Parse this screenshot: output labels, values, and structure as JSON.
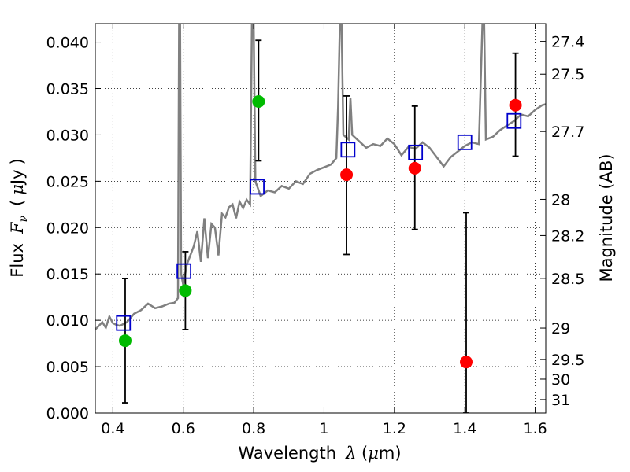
{
  "chart_data": {
    "type": "scatter",
    "xlabel": "Wavelength",
    "xlabel_symbol": "λ",
    "xlabel_unit_open": " (",
    "xlabel_unit_mu": "μ",
    "xlabel_unit_close": "m)",
    "ylabel": "Flux",
    "ylabel_symbol": "F",
    "ylabel_symbol_sub": "ν",
    "ylabel_unit_open": "(",
    "ylabel_unit_mu": "μ",
    "ylabel_unit_close": "Jy",
    "ylabel_paren_close": ")",
    "y2label": "Magnitude (AB)",
    "xlim": [
      0.35,
      1.63
    ],
    "ylim": [
      0.0,
      0.042
    ],
    "grid": true,
    "x_ticks": [
      0.4,
      0.6,
      0.8,
      1.0,
      1.2,
      1.4,
      1.6
    ],
    "x_tick_labels": [
      "0.4",
      "0.6",
      "0.8",
      "1",
      "1.2",
      "1.4",
      "1.6"
    ],
    "y_ticks": [
      0.0,
      0.005,
      0.01,
      0.015,
      0.02,
      0.025,
      0.03,
      0.035,
      0.04
    ],
    "y_tick_labels": [
      "0.000",
      "0.005",
      "0.010",
      "0.015",
      "0.020",
      "0.025",
      "0.030",
      "0.035",
      "0.040"
    ],
    "y2_ticks": [
      {
        "label": "27.4",
        "flux": 0.04008
      },
      {
        "label": "27.5",
        "flux": 0.03655
      },
      {
        "label": "27.7",
        "flux": 0.03036
      },
      {
        "label": "28",
        "flux": 0.02304
      },
      {
        "label": "28.2",
        "flux": 0.01914
      },
      {
        "label": "28.5",
        "flux": 0.01452
      },
      {
        "label": "29",
        "flux": 0.00916
      },
      {
        "label": "29.5",
        "flux": 0.00578
      },
      {
        "label": "30",
        "flux": 0.00365
      },
      {
        "label": "31",
        "flux": 0.00145
      }
    ],
    "series": [
      {
        "marker": "circle",
        "color": "#00bb00",
        "points": [
          {
            "x": 0.435,
            "y": 0.0078,
            "err_lo": 0.0011,
            "err_hi": 0.0145
          },
          {
            "x": 0.606,
            "y": 0.0132,
            "err_lo": 0.009,
            "err_hi": 0.0174
          },
          {
            "x": 0.814,
            "y": 0.0336,
            "err_lo": 0.0272,
            "err_hi": 0.0402
          }
        ]
      },
      {
        "marker": "circle",
        "color": "#ff0000",
        "points": [
          {
            "x": 1.064,
            "y": 0.0257,
            "err_lo": 0.0171,
            "err_hi": 0.0342
          },
          {
            "x": 1.258,
            "y": 0.0264,
            "err_lo": 0.0198,
            "err_hi": 0.0331
          },
          {
            "x": 1.404,
            "y": 0.0055,
            "err_lo": 0.0,
            "err_hi": 0.0216
          },
          {
            "x": 1.544,
            "y": 0.0332,
            "err_lo": 0.0277,
            "err_hi": 0.0388
          }
        ]
      },
      {
        "marker": "square",
        "color": "#0000cc",
        "points": [
          {
            "x": 0.43,
            "y": 0.0097
          },
          {
            "x": 0.602,
            "y": 0.0153
          },
          {
            "x": 0.81,
            "y": 0.0244
          },
          {
            "x": 1.068,
            "y": 0.0284
          },
          {
            "x": 1.26,
            "y": 0.0281
          },
          {
            "x": 1.4,
            "y": 0.0292
          },
          {
            "x": 1.54,
            "y": 0.0315
          }
        ]
      },
      {
        "marker": "line",
        "color": "#808080",
        "points": [
          {
            "x": 0.35,
            "y": 0.009
          },
          {
            "x": 0.37,
            "y": 0.0098
          },
          {
            "x": 0.38,
            "y": 0.0092
          },
          {
            "x": 0.39,
            "y": 0.0104
          },
          {
            "x": 0.4,
            "y": 0.0097
          },
          {
            "x": 0.41,
            "y": 0.0095
          },
          {
            "x": 0.42,
            "y": 0.0094
          },
          {
            "x": 0.44,
            "y": 0.0098
          },
          {
            "x": 0.46,
            "y": 0.0107
          },
          {
            "x": 0.48,
            "y": 0.0111
          },
          {
            "x": 0.5,
            "y": 0.0118
          },
          {
            "x": 0.52,
            "y": 0.0113
          },
          {
            "x": 0.54,
            "y": 0.0115
          },
          {
            "x": 0.56,
            "y": 0.0118
          },
          {
            "x": 0.575,
            "y": 0.0119
          },
          {
            "x": 0.585,
            "y": 0.0124
          },
          {
            "x": 0.588,
            "y": 0.042
          },
          {
            "x": 0.591,
            "y": 0.042
          },
          {
            "x": 0.594,
            "y": 0.015
          },
          {
            "x": 0.6,
            "y": 0.0138
          },
          {
            "x": 0.61,
            "y": 0.016
          },
          {
            "x": 0.62,
            "y": 0.017
          },
          {
            "x": 0.63,
            "y": 0.018
          },
          {
            "x": 0.64,
            "y": 0.0196
          },
          {
            "x": 0.65,
            "y": 0.0163
          },
          {
            "x": 0.66,
            "y": 0.021
          },
          {
            "x": 0.67,
            "y": 0.0167
          },
          {
            "x": 0.68,
            "y": 0.0204
          },
          {
            "x": 0.69,
            "y": 0.02
          },
          {
            "x": 0.7,
            "y": 0.017
          },
          {
            "x": 0.71,
            "y": 0.0215
          },
          {
            "x": 0.72,
            "y": 0.0211
          },
          {
            "x": 0.73,
            "y": 0.0222
          },
          {
            "x": 0.74,
            "y": 0.0225
          },
          {
            "x": 0.75,
            "y": 0.021
          },
          {
            "x": 0.76,
            "y": 0.0228
          },
          {
            "x": 0.77,
            "y": 0.0221
          },
          {
            "x": 0.78,
            "y": 0.023
          },
          {
            "x": 0.79,
            "y": 0.0225
          },
          {
            "x": 0.795,
            "y": 0.042
          },
          {
            "x": 0.8,
            "y": 0.042
          },
          {
            "x": 0.805,
            "y": 0.025
          },
          {
            "x": 0.82,
            "y": 0.0234
          },
          {
            "x": 0.84,
            "y": 0.024
          },
          {
            "x": 0.86,
            "y": 0.0238
          },
          {
            "x": 0.88,
            "y": 0.0245
          },
          {
            "x": 0.9,
            "y": 0.0242
          },
          {
            "x": 0.92,
            "y": 0.025
          },
          {
            "x": 0.94,
            "y": 0.0247
          },
          {
            "x": 0.96,
            "y": 0.0258
          },
          {
            "x": 0.98,
            "y": 0.0262
          },
          {
            "x": 1.0,
            "y": 0.0265
          },
          {
            "x": 1.02,
            "y": 0.0268
          },
          {
            "x": 1.035,
            "y": 0.0275
          },
          {
            "x": 1.04,
            "y": 0.033
          },
          {
            "x": 1.045,
            "y": 0.042
          },
          {
            "x": 1.05,
            "y": 0.042
          },
          {
            "x": 1.055,
            "y": 0.03
          },
          {
            "x": 1.07,
            "y": 0.0295
          },
          {
            "x": 1.075,
            "y": 0.034
          },
          {
            "x": 1.08,
            "y": 0.03
          },
          {
            "x": 1.1,
            "y": 0.0293
          },
          {
            "x": 1.12,
            "y": 0.0286
          },
          {
            "x": 1.14,
            "y": 0.029
          },
          {
            "x": 1.16,
            "y": 0.0288
          },
          {
            "x": 1.18,
            "y": 0.0296
          },
          {
            "x": 1.2,
            "y": 0.029
          },
          {
            "x": 1.22,
            "y": 0.0278
          },
          {
            "x": 1.24,
            "y": 0.0287
          },
          {
            "x": 1.26,
            "y": 0.0285
          },
          {
            "x": 1.28,
            "y": 0.0292
          },
          {
            "x": 1.3,
            "y": 0.0286
          },
          {
            "x": 1.32,
            "y": 0.0276
          },
          {
            "x": 1.34,
            "y": 0.0266
          },
          {
            "x": 1.36,
            "y": 0.0276
          },
          {
            "x": 1.38,
            "y": 0.0282
          },
          {
            "x": 1.4,
            "y": 0.0288
          },
          {
            "x": 1.42,
            "y": 0.0292
          },
          {
            "x": 1.44,
            "y": 0.029
          },
          {
            "x": 1.45,
            "y": 0.042
          },
          {
            "x": 1.455,
            "y": 0.042
          },
          {
            "x": 1.46,
            "y": 0.0295
          },
          {
            "x": 1.48,
            "y": 0.0298
          },
          {
            "x": 1.5,
            "y": 0.0305
          },
          {
            "x": 1.52,
            "y": 0.031
          },
          {
            "x": 1.54,
            "y": 0.0315
          },
          {
            "x": 1.56,
            "y": 0.0322
          },
          {
            "x": 1.58,
            "y": 0.032
          },
          {
            "x": 1.6,
            "y": 0.0327
          },
          {
            "x": 1.62,
            "y": 0.0332
          },
          {
            "x": 1.63,
            "y": 0.0333
          }
        ]
      }
    ]
  }
}
